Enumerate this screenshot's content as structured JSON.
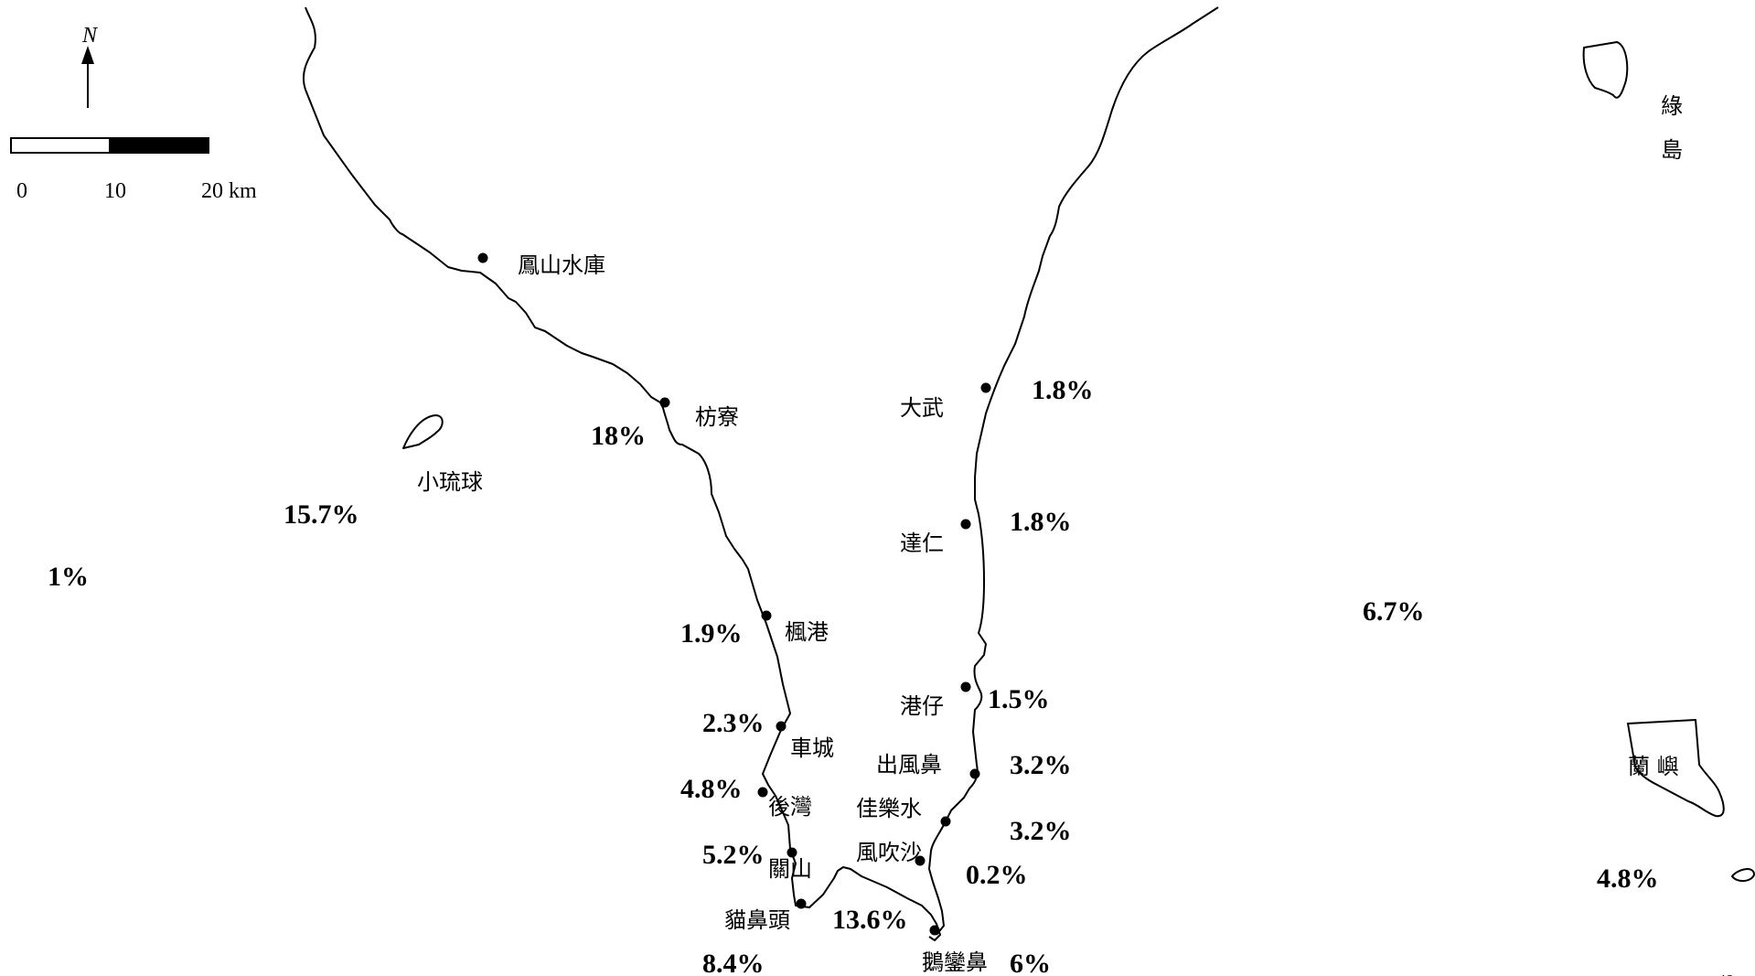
{
  "north_label": "N",
  "scale": {
    "labels": [
      "0",
      "10",
      "20 km"
    ]
  },
  "sites": [
    {
      "id": "fengshan-reservoir",
      "name": "鳳山水庫",
      "value": ""
    },
    {
      "id": "fangliao",
      "name": "枋寮",
      "value": "18%"
    },
    {
      "id": "xiaoliuqiu",
      "name": "小琉球",
      "value": "15.7%"
    },
    {
      "id": "offshore-west",
      "name": "",
      "value": "1%"
    },
    {
      "id": "fenggang",
      "name": "楓港",
      "value": "1.9%"
    },
    {
      "id": "checheng",
      "name": "車城",
      "value": "2.3%"
    },
    {
      "id": "houwan",
      "name": "後灣",
      "value": "4.8%"
    },
    {
      "id": "guanshan",
      "name": "關山",
      "value": "5.2%"
    },
    {
      "id": "maobitou",
      "name": "貓鼻頭",
      "value": "8.4%"
    },
    {
      "id": "south-bay",
      "name": "",
      "value": "13.6%"
    },
    {
      "id": "eluanbi",
      "name": "鵝鑾鼻",
      "value": "6%"
    },
    {
      "id": "fengchuisha",
      "name": "風吹沙",
      "value": "0.2%"
    },
    {
      "id": "jialeshui",
      "name": "佳樂水",
      "value": "3.2%"
    },
    {
      "id": "chufengbi",
      "name": "出風鼻",
      "value": "3.2%"
    },
    {
      "id": "gangzai",
      "name": "港仔",
      "value": "1.5%"
    },
    {
      "id": "daren",
      "name": "達仁",
      "value": "1.8%"
    },
    {
      "id": "dawu",
      "name": "大武",
      "value": "1.8%"
    },
    {
      "id": "green-island",
      "name": "綠島",
      "value": "6.7%"
    },
    {
      "id": "orchid-island",
      "name": "蘭嶼",
      "value": "4.8%"
    }
  ],
  "page_number": "49"
}
